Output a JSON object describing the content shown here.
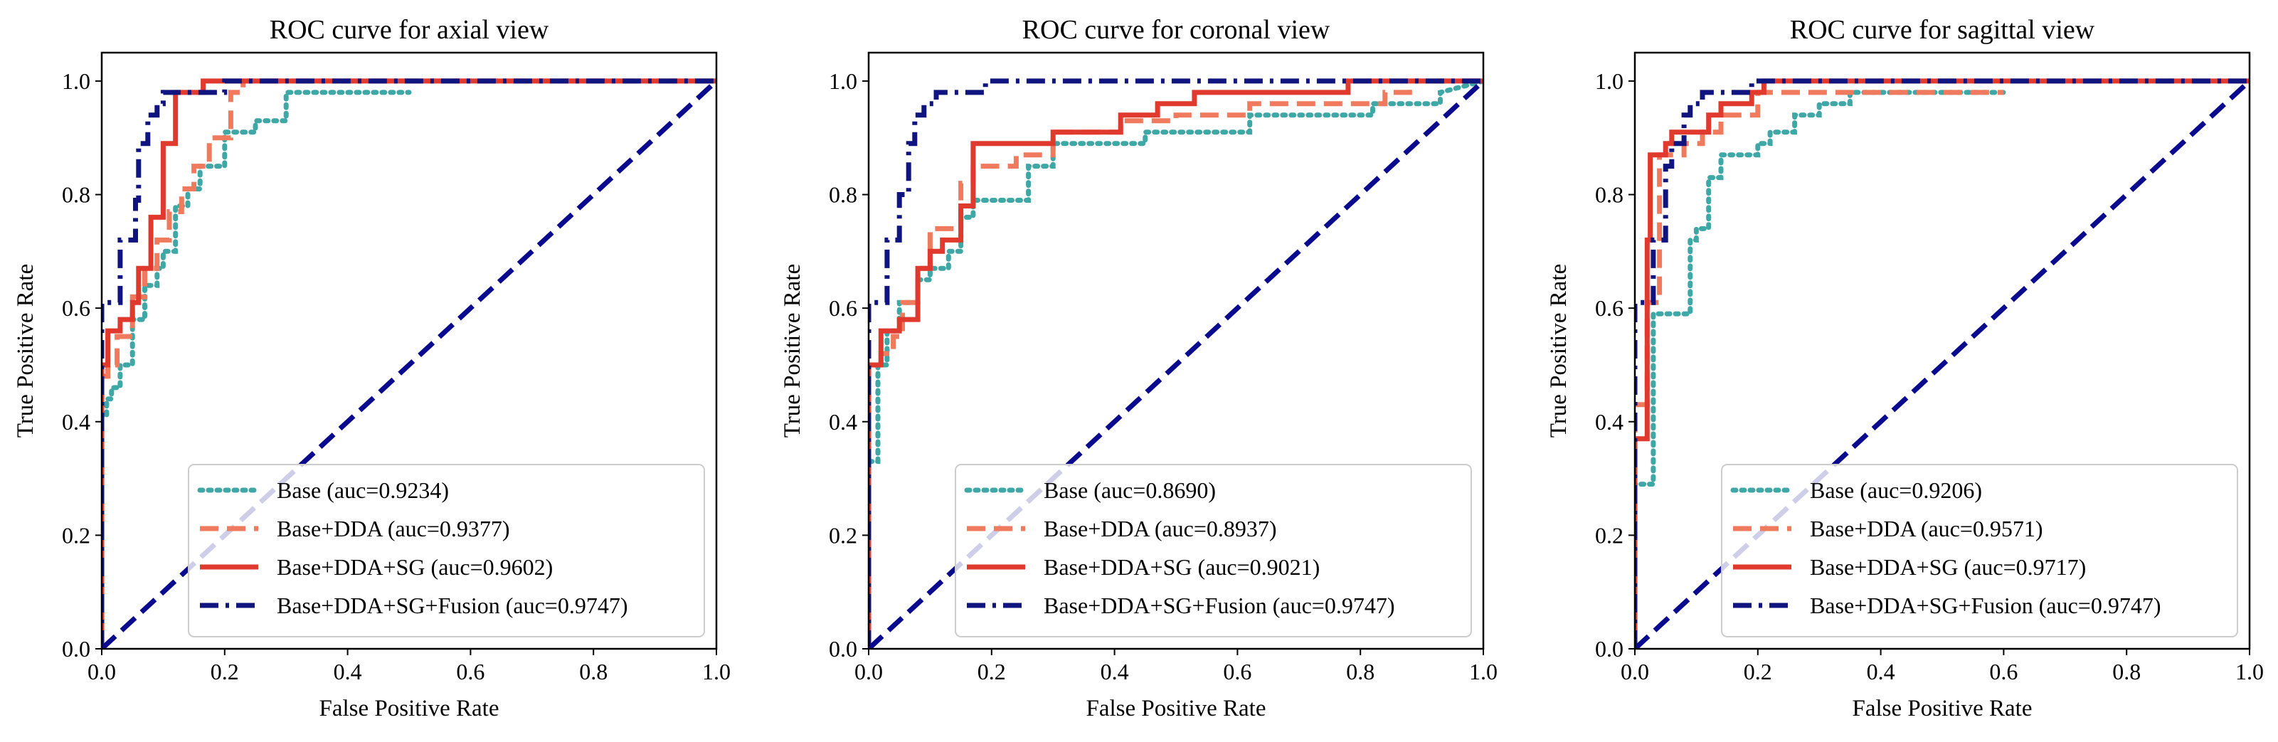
{
  "chart_data": [
    {
      "type": "line",
      "title": "ROC curve for axial view",
      "xlabel": "False Positive Rate",
      "ylabel": "True Positive Rate",
      "xlim": [
        0,
        1
      ],
      "ylim": [
        0,
        1.05
      ],
      "xticks": [
        "0.0",
        "0.2",
        "0.4",
        "0.6",
        "0.8",
        "1.0"
      ],
      "yticks": [
        "0.0",
        "0.2",
        "0.4",
        "0.6",
        "0.8",
        "1.0"
      ],
      "legend_position": "lower-right",
      "series": [
        {
          "name": "Base (auc=0.9234)",
          "color": "#3fa7a6",
          "style": "dotted",
          "x": [
            0,
            0,
            0.008,
            0.008,
            0.016,
            0.016,
            0.03,
            0.03,
            0.05,
            0.05,
            0.07,
            0.07,
            0.09,
            0.09,
            0.1,
            0.1,
            0.12,
            0.12,
            0.14,
            0.14,
            0.16,
            0.16,
            0.2,
            0.2,
            0.25,
            0.25,
            0.3,
            0.3,
            0.5
          ],
          "y": [
            0,
            0.41,
            0.41,
            0.44,
            0.44,
            0.46,
            0.46,
            0.5,
            0.5,
            0.58,
            0.58,
            0.64,
            0.64,
            0.67,
            0.67,
            0.7,
            0.7,
            0.78,
            0.78,
            0.81,
            0.81,
            0.85,
            0.85,
            0.91,
            0.91,
            0.93,
            0.93,
            0.98,
            0.98
          ]
        },
        {
          "name": "Base+DDA (auc=0.9377)",
          "color": "#f07a5e",
          "style": "dashed",
          "x": [
            0,
            0,
            0.01,
            0.01,
            0.025,
            0.025,
            0.05,
            0.05,
            0.07,
            0.07,
            0.09,
            0.09,
            0.11,
            0.11,
            0.13,
            0.13,
            0.15,
            0.15,
            0.175,
            0.175,
            0.21,
            0.21,
            0.23,
            0.23,
            1.0
          ],
          "y": [
            0,
            0.48,
            0.48,
            0.5,
            0.5,
            0.55,
            0.55,
            0.62,
            0.62,
            0.67,
            0.67,
            0.72,
            0.72,
            0.77,
            0.77,
            0.81,
            0.81,
            0.85,
            0.85,
            0.9,
            0.9,
            0.98,
            0.98,
            1.0,
            1.0
          ]
        },
        {
          "name": "Base+DDA+SG (auc=0.9602)",
          "color": "#e03a2e",
          "style": "solid",
          "x": [
            0,
            0,
            0.01,
            0.01,
            0.03,
            0.03,
            0.05,
            0.05,
            0.06,
            0.06,
            0.08,
            0.08,
            0.1,
            0.1,
            0.12,
            0.12,
            0.165,
            0.165,
            1.0
          ],
          "y": [
            0,
            0.5,
            0.5,
            0.56,
            0.56,
            0.58,
            0.58,
            0.61,
            0.61,
            0.67,
            0.67,
            0.76,
            0.76,
            0.89,
            0.89,
            0.98,
            0.98,
            1.0,
            1.0
          ]
        },
        {
          "name": "Base+DDA+SG+Fusion (auc=0.9747)",
          "color": "#10147e",
          "style": "dashdot",
          "x": [
            0,
            0,
            0.03,
            0.03,
            0.055,
            0.055,
            0.06,
            0.06,
            0.075,
            0.075,
            0.09,
            0.09,
            0.1,
            0.1,
            0.12,
            0.12,
            0.2,
            0.2,
            1.0
          ],
          "y": [
            0,
            0.61,
            0.61,
            0.72,
            0.72,
            0.79,
            0.79,
            0.89,
            0.89,
            0.94,
            0.94,
            0.96,
            0.96,
            0.98,
            0.98,
            0.98,
            0.98,
            1.0,
            1.0
          ]
        }
      ],
      "diagonal": {
        "color": "#0a0a8f",
        "style": "dashed",
        "x": [
          0,
          1
        ],
        "y": [
          0,
          1
        ]
      }
    },
    {
      "type": "line",
      "title": "ROC curve for coronal view",
      "xlabel": "False Positive Rate",
      "ylabel": "True Positive Rate",
      "xlim": [
        0,
        1
      ],
      "ylim": [
        0,
        1.05
      ],
      "xticks": [
        "0.0",
        "0.2",
        "0.4",
        "0.6",
        "0.8",
        "1.0"
      ],
      "yticks": [
        "0.0",
        "0.2",
        "0.4",
        "0.6",
        "0.8",
        "1.0"
      ],
      "legend_position": "lower-right",
      "series": [
        {
          "name": "Base (auc=0.8690)",
          "color": "#3fa7a6",
          "style": "dotted",
          "x": [
            0,
            0,
            0.015,
            0.015,
            0.03,
            0.03,
            0.05,
            0.05,
            0.08,
            0.08,
            0.1,
            0.1,
            0.13,
            0.13,
            0.15,
            0.15,
            0.17,
            0.17,
            0.26,
            0.26,
            0.3,
            0.3,
            0.45,
            0.45,
            0.62,
            0.62,
            0.82,
            0.82,
            0.93,
            0.93,
            1.0
          ],
          "y": [
            0,
            0.33,
            0.33,
            0.5,
            0.5,
            0.56,
            0.56,
            0.61,
            0.61,
            0.65,
            0.65,
            0.67,
            0.67,
            0.7,
            0.7,
            0.76,
            0.76,
            0.79,
            0.79,
            0.85,
            0.85,
            0.89,
            0.89,
            0.91,
            0.91,
            0.94,
            0.94,
            0.96,
            0.96,
            0.98,
            1.0
          ]
        },
        {
          "name": "Base+DDA (auc=0.8937)",
          "color": "#f07a5e",
          "style": "dashed",
          "x": [
            0,
            0,
            0.02,
            0.02,
            0.04,
            0.04,
            0.055,
            0.055,
            0.08,
            0.08,
            0.1,
            0.1,
            0.15,
            0.15,
            0.17,
            0.17,
            0.24,
            0.24,
            0.3,
            0.3,
            0.41,
            0.41,
            0.5,
            0.5,
            0.62,
            0.62,
            0.84,
            0.84,
            0.88,
            0.88,
            1.0
          ],
          "y": [
            0,
            0.5,
            0.5,
            0.52,
            0.52,
            0.55,
            0.55,
            0.61,
            0.61,
            0.67,
            0.67,
            0.74,
            0.74,
            0.82,
            0.82,
            0.85,
            0.85,
            0.87,
            0.87,
            0.91,
            0.91,
            0.93,
            0.93,
            0.94,
            0.94,
            0.96,
            0.96,
            0.98,
            0.98,
            1.0,
            1.0
          ]
        },
        {
          "name": "Base+DDA+SG (auc=0.9021)",
          "color": "#e03a2e",
          "style": "solid",
          "x": [
            0,
            0,
            0.02,
            0.02,
            0.05,
            0.05,
            0.08,
            0.08,
            0.1,
            0.1,
            0.12,
            0.12,
            0.15,
            0.15,
            0.17,
            0.17,
            0.3,
            0.3,
            0.41,
            0.41,
            0.47,
            0.47,
            0.53,
            0.53,
            0.78,
            0.78,
            1.0
          ],
          "y": [
            0,
            0.5,
            0.5,
            0.56,
            0.56,
            0.58,
            0.58,
            0.67,
            0.67,
            0.7,
            0.7,
            0.72,
            0.72,
            0.78,
            0.78,
            0.89,
            0.89,
            0.91,
            0.91,
            0.94,
            0.94,
            0.96,
            0.96,
            0.98,
            0.98,
            1.0,
            1.0
          ]
        },
        {
          "name": "Base+DDA+SG+Fusion (auc=0.9747)",
          "color": "#10147e",
          "style": "dashdot",
          "x": [
            0,
            0,
            0.03,
            0.03,
            0.05,
            0.05,
            0.065,
            0.065,
            0.075,
            0.075,
            0.09,
            0.09,
            0.11,
            0.11,
            0.19,
            0.19,
            1.0
          ],
          "y": [
            0,
            0.61,
            0.61,
            0.72,
            0.72,
            0.8,
            0.8,
            0.89,
            0.89,
            0.94,
            0.94,
            0.96,
            0.96,
            0.98,
            0.98,
            1.0,
            1.0
          ]
        }
      ],
      "diagonal": {
        "color": "#0a0a8f",
        "style": "dashed",
        "x": [
          0,
          1
        ],
        "y": [
          0,
          1
        ]
      }
    },
    {
      "type": "line",
      "title": "ROC curve for sagittal view",
      "xlabel": "False Positive Rate",
      "ylabel": "True Positive Rate",
      "xlim": [
        0,
        1
      ],
      "ylim": [
        0,
        1.05
      ],
      "xticks": [
        "0.0",
        "0.2",
        "0.4",
        "0.6",
        "0.8",
        "1.0"
      ],
      "yticks": [
        "0.0",
        "0.2",
        "0.4",
        "0.6",
        "0.8",
        "1.0"
      ],
      "legend_position": "lower-right",
      "series": [
        {
          "name": "Base (auc=0.9206)",
          "color": "#3fa7a6",
          "style": "dotted",
          "x": [
            0,
            0,
            0.03,
            0.03,
            0.045,
            0.045,
            0.09,
            0.09,
            0.1,
            0.1,
            0.12,
            0.12,
            0.14,
            0.14,
            0.2,
            0.2,
            0.22,
            0.22,
            0.26,
            0.26,
            0.3,
            0.3,
            0.35,
            0.35,
            0.6
          ],
          "y": [
            0,
            0.29,
            0.29,
            0.59,
            0.59,
            0.59,
            0.59,
            0.72,
            0.72,
            0.74,
            0.74,
            0.83,
            0.83,
            0.87,
            0.87,
            0.89,
            0.89,
            0.91,
            0.91,
            0.94,
            0.94,
            0.96,
            0.96,
            0.98,
            0.98
          ]
        },
        {
          "name": "Base+DDA (auc=0.9571)",
          "color": "#f07a5e",
          "style": "dashed",
          "x": [
            0,
            0,
            0.02,
            0.02,
            0.04,
            0.04,
            0.08,
            0.08,
            0.11,
            0.11,
            0.14,
            0.14,
            0.2,
            0.2,
            0.6
          ],
          "y": [
            0,
            0.43,
            0.43,
            0.61,
            0.61,
            0.87,
            0.87,
            0.89,
            0.89,
            0.91,
            0.91,
            0.94,
            0.94,
            0.98,
            0.98
          ]
        },
        {
          "name": "Base+DDA+SG (auc=0.9717)",
          "color": "#e03a2e",
          "style": "solid",
          "x": [
            0,
            0,
            0.02,
            0.02,
            0.025,
            0.025,
            0.05,
            0.05,
            0.06,
            0.06,
            0.12,
            0.12,
            0.14,
            0.14,
            0.19,
            0.19,
            0.21,
            0.21,
            1.0
          ],
          "y": [
            0,
            0.37,
            0.37,
            0.72,
            0.72,
            0.87,
            0.87,
            0.89,
            0.89,
            0.91,
            0.91,
            0.94,
            0.94,
            0.96,
            0.96,
            0.98,
            0.98,
            1.0,
            1.0
          ]
        },
        {
          "name": "Base+DDA+SG+Fusion (auc=0.9747)",
          "color": "#10147e",
          "style": "dashdot",
          "x": [
            0,
            0,
            0.03,
            0.03,
            0.05,
            0.05,
            0.06,
            0.06,
            0.08,
            0.08,
            0.09,
            0.09,
            0.11,
            0.11,
            0.19,
            0.19,
            1.0
          ],
          "y": [
            0,
            0.61,
            0.61,
            0.72,
            0.72,
            0.85,
            0.85,
            0.89,
            0.89,
            0.94,
            0.94,
            0.96,
            0.96,
            0.98,
            0.98,
            1.0,
            1.0
          ]
        }
      ],
      "diagonal": {
        "color": "#0a0a8f",
        "style": "dashed",
        "x": [
          0,
          1
        ],
        "y": [
          0,
          1
        ]
      }
    }
  ]
}
